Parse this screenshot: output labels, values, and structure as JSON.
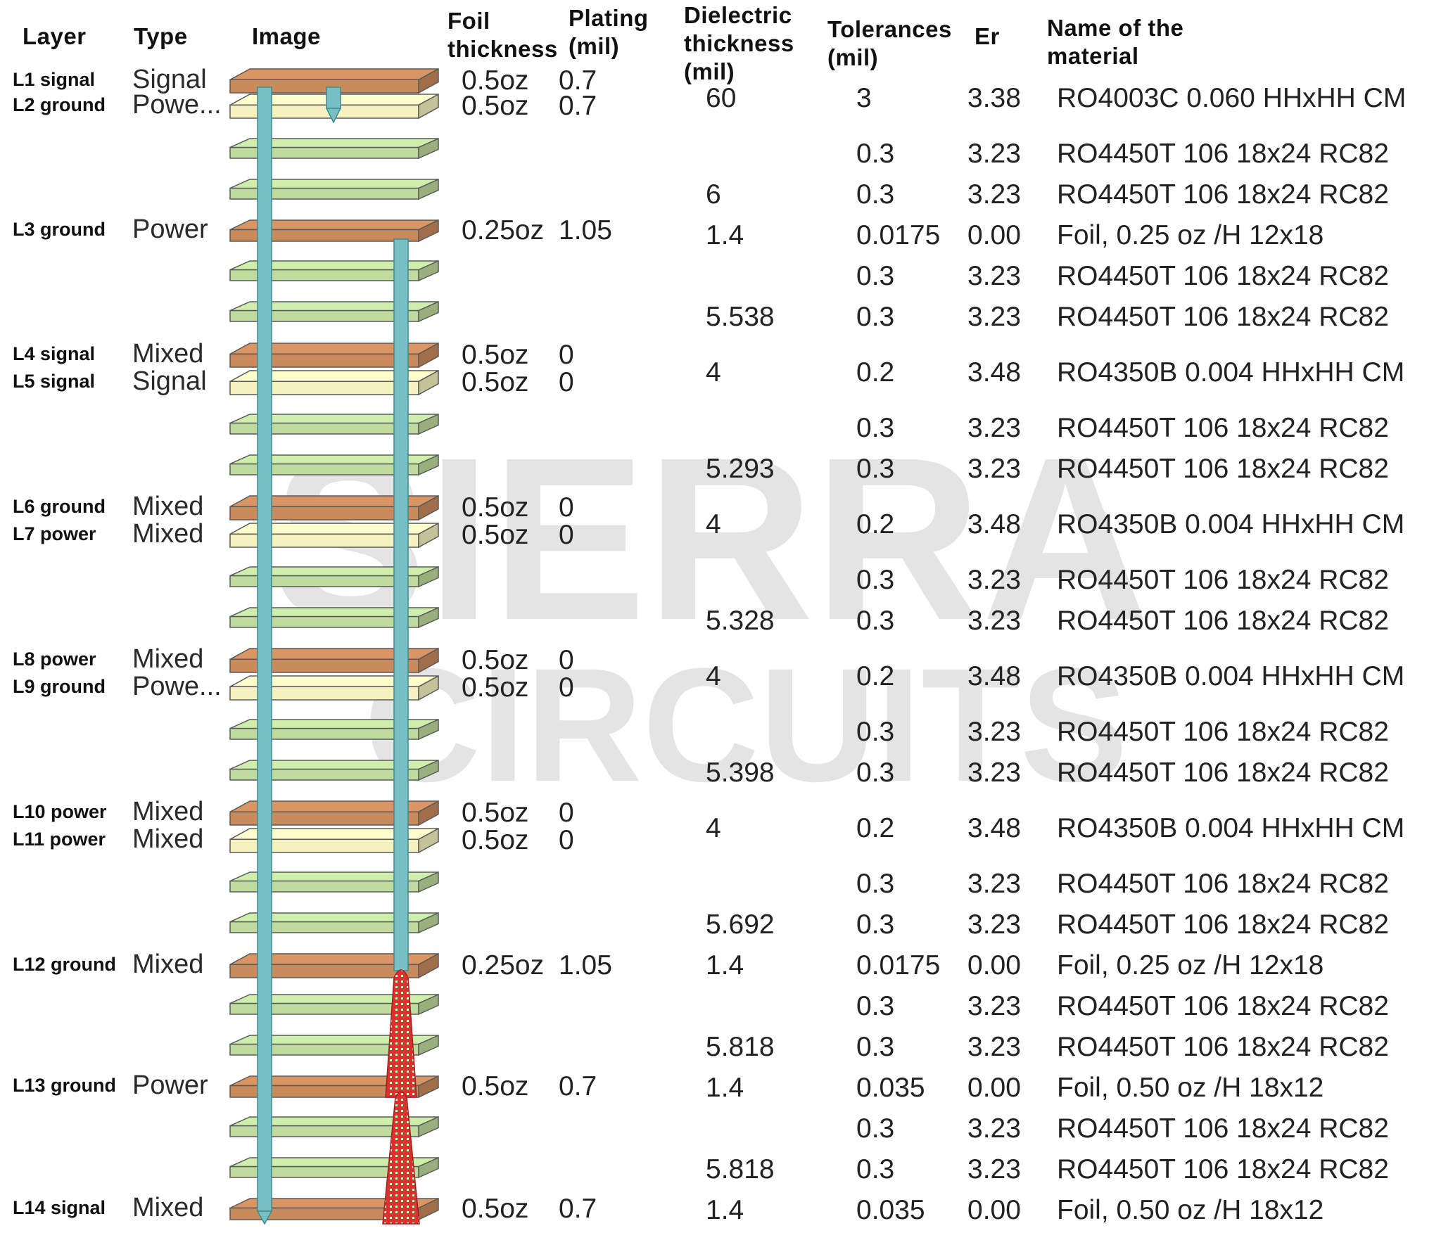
{
  "headers": {
    "layer": "Layer",
    "type": "Type",
    "image": "Image",
    "foil": "Foil\nthickness",
    "plating": "Plating\n(mil)",
    "dielectric": "Dielectric\nthickness\n(mil)",
    "tolerances": "Tolerances\n(mil)",
    "er": "Er",
    "material": "Name of the\nmaterial"
  },
  "watermark": {
    "line1": "SIERRA",
    "line2": "CIRCUITS"
  },
  "colors": {
    "copper": "#c98a5c",
    "prepreg": "#bfdc9e",
    "core": "#f5f2bf",
    "via": "#79c0c6",
    "blind_via": "#e0302c",
    "watermark": "#e4e4e4"
  },
  "stack": [
    {
      "kind": "copper",
      "layer": "L1 signal",
      "type": "Signal",
      "foil": "0.5oz",
      "plating": "0.7"
    },
    {
      "kind": "core",
      "layer": "L2 ground",
      "type": "Powe...",
      "foil": "0.5oz",
      "plating": "0.7"
    },
    {
      "kind": "prepreg"
    },
    {
      "kind": "prepreg"
    },
    {
      "kind": "copper",
      "layer": "L3 ground",
      "type": "Power",
      "foil": "0.25oz",
      "plating": "1.05"
    },
    {
      "kind": "prepreg"
    },
    {
      "kind": "prepreg"
    },
    {
      "kind": "copper",
      "layer": "L4 signal",
      "type": "Mixed",
      "foil": "0.5oz",
      "plating": "0"
    },
    {
      "kind": "core",
      "layer": "L5 signal",
      "type": "Signal",
      "foil": "0.5oz",
      "plating": "0"
    },
    {
      "kind": "prepreg"
    },
    {
      "kind": "prepreg"
    },
    {
      "kind": "copper",
      "layer": "L6 ground",
      "type": "Mixed",
      "foil": "0.5oz",
      "plating": "0"
    },
    {
      "kind": "core",
      "layer": "L7 power",
      "type": "Mixed",
      "foil": "0.5oz",
      "plating": "0"
    },
    {
      "kind": "prepreg"
    },
    {
      "kind": "prepreg"
    },
    {
      "kind": "copper",
      "layer": "L8 power",
      "type": "Mixed",
      "foil": "0.5oz",
      "plating": "0"
    },
    {
      "kind": "core",
      "layer": "L9 ground",
      "type": "Powe...",
      "foil": "0.5oz",
      "plating": "0"
    },
    {
      "kind": "prepreg"
    },
    {
      "kind": "prepreg"
    },
    {
      "kind": "copper",
      "layer": "L10 power",
      "type": "Mixed",
      "foil": "0.5oz",
      "plating": "0"
    },
    {
      "kind": "core",
      "layer": "L11 power",
      "type": "Mixed",
      "foil": "0.5oz",
      "plating": "0"
    },
    {
      "kind": "prepreg"
    },
    {
      "kind": "prepreg"
    },
    {
      "kind": "copper",
      "layer": "L12 ground",
      "type": "Mixed",
      "foil": "0.25oz",
      "plating": "1.05"
    },
    {
      "kind": "prepreg"
    },
    {
      "kind": "prepreg"
    },
    {
      "kind": "copper",
      "layer": "L13 ground",
      "type": "Power",
      "foil": "0.5oz",
      "plating": "0.7"
    },
    {
      "kind": "prepreg"
    },
    {
      "kind": "prepreg"
    },
    {
      "kind": "copper",
      "layer": "L14 signal",
      "type": "Mixed",
      "foil": "0.5oz",
      "plating": "0.7"
    }
  ],
  "rows": [
    {
      "dielectric": "60",
      "tol": "3",
      "er": "3.38",
      "material": "RO4003C 0.060 HHxHH CM"
    },
    {
      "dielectric": "",
      "tol": "0.3",
      "er": "3.23",
      "material": "RO4450T 106 18x24 RC82"
    },
    {
      "dielectric": "6",
      "tol": "0.3",
      "er": "3.23",
      "material": "RO4450T 106 18x24 RC82"
    },
    {
      "dielectric": "1.4",
      "tol": "0.0175",
      "er": "0.00",
      "material": "Foil, 0.25 oz /H 12x18"
    },
    {
      "dielectric": "",
      "tol": "0.3",
      "er": "3.23",
      "material": "RO4450T 106 18x24 RC82"
    },
    {
      "dielectric": "5.538",
      "tol": "0.3",
      "er": "3.23",
      "material": "RO4450T 106 18x24 RC82"
    },
    {
      "dielectric": "4",
      "tol": "0.2",
      "er": "3.48",
      "material": "RO4350B 0.004 HHxHH CM"
    },
    {
      "dielectric": "",
      "tol": "0.3",
      "er": "3.23",
      "material": "RO4450T 106 18x24 RC82"
    },
    {
      "dielectric": "5.293",
      "tol": "0.3",
      "er": "3.23",
      "material": "RO4450T 106 18x24 RC82"
    },
    {
      "dielectric": "4",
      "tol": "0.2",
      "er": "3.48",
      "material": "RO4350B 0.004 HHxHH CM"
    },
    {
      "dielectric": "",
      "tol": "0.3",
      "er": "3.23",
      "material": "RO4450T 106 18x24 RC82"
    },
    {
      "dielectric": "5.328",
      "tol": "0.3",
      "er": "3.23",
      "material": "RO4450T 106 18x24 RC82"
    },
    {
      "dielectric": "4",
      "tol": "0.2",
      "er": "3.48",
      "material": "RO4350B 0.004 HHxHH CM"
    },
    {
      "dielectric": "",
      "tol": "0.3",
      "er": "3.23",
      "material": "RO4450T 106 18x24 RC82"
    },
    {
      "dielectric": "5.398",
      "tol": "0.3",
      "er": "3.23",
      "material": "RO4450T 106 18x24 RC82"
    },
    {
      "dielectric": "4",
      "tol": "0.2",
      "er": "3.48",
      "material": "RO4350B 0.004 HHxHH CM"
    },
    {
      "dielectric": "",
      "tol": "0.3",
      "er": "3.23",
      "material": "RO4450T 106 18x24 RC82"
    },
    {
      "dielectric": "5.692",
      "tol": "0.3",
      "er": "3.23",
      "material": "RO4450T 106 18x24 RC82"
    },
    {
      "dielectric": "1.4",
      "tol": "0.0175",
      "er": "0.00",
      "material": "Foil, 0.25 oz /H 12x18"
    },
    {
      "dielectric": "",
      "tol": "0.3",
      "er": "3.23",
      "material": "RO4450T 106 18x24 RC82"
    },
    {
      "dielectric": "5.818",
      "tol": "0.3",
      "er": "3.23",
      "material": "RO4450T 106 18x24 RC82"
    },
    {
      "dielectric": "1.4",
      "tol": "0.035",
      "er": "0.00",
      "material": "Foil, 0.50 oz /H 18x12"
    },
    {
      "dielectric": "",
      "tol": "0.3",
      "er": "3.23",
      "material": "RO4450T 106 18x24 RC82"
    },
    {
      "dielectric": "5.818",
      "tol": "0.3",
      "er": "3.23",
      "material": "RO4450T 106 18x24 RC82"
    },
    {
      "dielectric": "1.4",
      "tol": "0.035",
      "er": "0.00",
      "material": "Foil, 0.50 oz /H 18x12"
    }
  ]
}
